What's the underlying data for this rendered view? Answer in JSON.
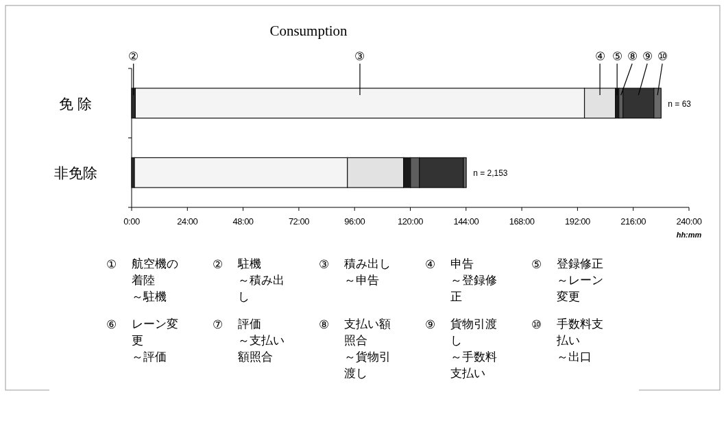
{
  "chart_data": {
    "type": "bar",
    "orientation": "horizontal",
    "stacked": true,
    "title": "Consumption",
    "xlabel": "hh:mm",
    "categories": [
      "免 除",
      "非免除"
    ],
    "series": [
      {
        "name": "②",
        "color": "#2b2b2b",
        "values": [
          1.6,
          1.2
        ]
      },
      {
        "name": "③",
        "color": "#f4f4f4",
        "values": [
          193.4,
          91.7
        ]
      },
      {
        "name": "④",
        "color": "#e2e2e2",
        "values": [
          13.3,
          24.2
        ]
      },
      {
        "name": "⑤",
        "color": "#1a1a1a",
        "values": [
          1.5,
          3.0
        ]
      },
      {
        "name": "⑧",
        "color": "#5e5e5e",
        "values": [
          1.8,
          3.8
        ]
      },
      {
        "name": "⑨",
        "color": "#333333",
        "values": [
          13.3,
          19.0
        ]
      },
      {
        "name": "⑩",
        "color": "#6a6a6a",
        "values": [
          3.1,
          1.2
        ]
      }
    ],
    "xlim": [
      0,
      240
    ],
    "xticks": [
      {
        "value": 0,
        "label": "0:00"
      },
      {
        "value": 24,
        "label": "24:00"
      },
      {
        "value": 48,
        "label": "48:00"
      },
      {
        "value": 72,
        "label": "72:00"
      },
      {
        "value": 96,
        "label": "96:00"
      },
      {
        "value": 120,
        "label": "120:00"
      },
      {
        "value": 144,
        "label": "144:00"
      },
      {
        "value": 168,
        "label": "168:00"
      },
      {
        "value": 192,
        "label": "192:00"
      },
      {
        "value": 216,
        "label": "216:00"
      },
      {
        "value": 240,
        "label": "240:00"
      }
    ],
    "annotations": [
      {
        "text": "n = 63",
        "x": 228,
        "y": "免 除"
      },
      {
        "text": "n = 2,153",
        "x": 144.1,
        "y": "非免除"
      },
      "①",
      "航空機の着陸",
      "～駐機",
      "②",
      "駐機",
      "～積み出し",
      "③",
      "積み出し",
      "～申告",
      "④",
      "申告",
      "～登録修正",
      "⑤",
      "登録修正",
      "～レーン変更",
      "⑥",
      "レーン変更",
      "～評価",
      "⑦",
      "評価",
      "～支払い額照合",
      "⑧",
      "支払い額照合",
      "～貨物引渡し",
      "⑨",
      "貨物引渡し",
      "～手数料支払い",
      "⑩",
      "手数料支払い",
      "～出口"
    ]
  }
}
